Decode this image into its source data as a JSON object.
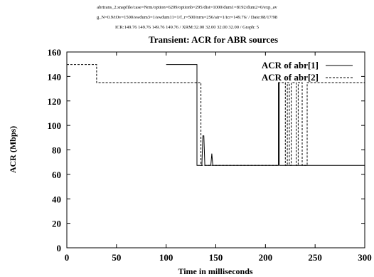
{
  "header": {
    "line1": "abrtrans_2.snapfile/case=Nrm/option=6209/optionb=295/dist=1000/dum1=8192/dum2=0/exp_av",
    "line2": "g_N=0.9/tOv=1500/swdum3=1/swdum11=1/f_r=500/nrm=256/air=1/icr=149.76/ / Date:08/17/98",
    "line3": "ICR:149.76 149.76 149.76 149.76 / XRM:32.00 32.00 32.00 32.00 / Graph: 5"
  },
  "chart_data": {
    "type": "line",
    "title": "Transient: ACR for ABR sources",
    "xlabel": "Time in milliseconds",
    "ylabel": "ACR (Mbps)",
    "xlim": [
      0,
      300
    ],
    "ylim": [
      0,
      160
    ],
    "xticks": [
      0,
      50,
      100,
      150,
      200,
      250,
      300
    ],
    "yticks": [
      0,
      20,
      40,
      60,
      80,
      100,
      120,
      140,
      160
    ],
    "grid": false,
    "legend_position": "top-right",
    "series": [
      {
        "name": "ACR of abr[1]",
        "style": "solid",
        "color": "#000000",
        "x": [
          100,
          131,
          131,
          136,
          137,
          138,
          139,
          145,
          146,
          147,
          213,
          213,
          214,
          214,
          300
        ],
        "y": [
          149.76,
          149.76,
          67.4,
          67.4,
          91.5,
          91.5,
          67.4,
          67.4,
          77,
          67.4,
          67.4,
          135,
          135,
          67.4,
          67.4
        ]
      },
      {
        "name": "ACR of abr[2]",
        "style": "dashed",
        "color": "#000000",
        "x": [
          0,
          30,
          30,
          135,
          135,
          213,
          213,
          220,
          220,
          222,
          222,
          224,
          224,
          226,
          226,
          231,
          231,
          233,
          233,
          237,
          237,
          242,
          242,
          300
        ],
        "y": [
          149.76,
          149.76,
          135,
          135,
          67.4,
          67.4,
          135,
          135,
          67.4,
          67.4,
          135,
          135,
          67.4,
          67.4,
          135,
          135,
          67.4,
          67.4,
          135,
          135,
          67.4,
          67.4,
          135,
          135
        ]
      }
    ]
  }
}
